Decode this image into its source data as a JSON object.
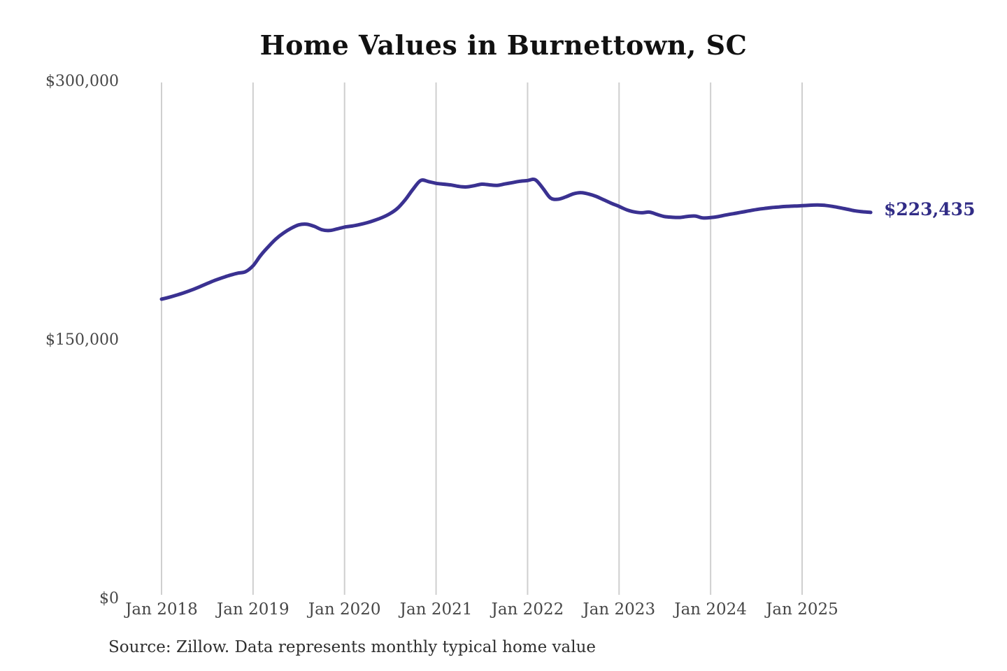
{
  "header": {
    "title": "Home Values in Burnettown, SC"
  },
  "footer": {
    "source_note": "Source: Zillow. Data represents monthly typical home value"
  },
  "chart_data": {
    "type": "line",
    "title": "Home Values in Burnettown, SC",
    "series_name": "Monthly typical home value",
    "xlabel": "",
    "ylabel": "",
    "ylim": [
      0,
      300000
    ],
    "grid": "vertical-only",
    "legend": "none",
    "line_color": "#3a3191",
    "gridline_color": "#cfcfcf",
    "tick_label_color": "#474747",
    "end_label": "$223,435",
    "end_value": 223435,
    "y_ticks": [
      {
        "label": "$0",
        "value": 0
      },
      {
        "label": "$150,000",
        "value": 150000
      },
      {
        "label": "$300,000",
        "value": 300000
      }
    ],
    "x_tick_labels": [
      "Jan 2018",
      "Jan 2019",
      "Jan 2020",
      "Jan 2021",
      "Jan 2022",
      "Jan 2023",
      "Jan 2024",
      "Jan 2025"
    ],
    "x": [
      "Jan 2018",
      "Feb 2018",
      "Mar 2018",
      "Apr 2018",
      "May 2018",
      "Jun 2018",
      "Jul 2018",
      "Aug 2018",
      "Sep 2018",
      "Oct 2018",
      "Nov 2018",
      "Dec 2018",
      "Jan 2019",
      "Feb 2019",
      "Mar 2019",
      "Apr 2019",
      "May 2019",
      "Jun 2019",
      "Jul 2019",
      "Aug 2019",
      "Sep 2019",
      "Oct 2019",
      "Nov 2019",
      "Dec 2019",
      "Jan 2020",
      "Feb 2020",
      "Mar 2020",
      "Apr 2020",
      "May 2020",
      "Jun 2020",
      "Jul 2020",
      "Aug 2020",
      "Sep 2020",
      "Oct 2020",
      "Nov 2020",
      "Dec 2020",
      "Jan 2021",
      "Feb 2021",
      "Mar 2021",
      "Apr 2021",
      "May 2021",
      "Jun 2021",
      "Jul 2021",
      "Aug 2021",
      "Sep 2021",
      "Oct 2021",
      "Nov 2021",
      "Dec 2021",
      "Jan 2022",
      "Feb 2022",
      "Mar 2022",
      "Apr 2022",
      "May 2022",
      "Jun 2022",
      "Jul 2022",
      "Aug 2022",
      "Sep 2022",
      "Oct 2022",
      "Nov 2022",
      "Dec 2022",
      "Jan 2023",
      "Feb 2023",
      "Mar 2023",
      "Apr 2023",
      "May 2023",
      "Jun 2023",
      "Jul 2023",
      "Aug 2023",
      "Sep 2023",
      "Oct 2023",
      "Nov 2023",
      "Dec 2023",
      "Jan 2024",
      "Feb 2024",
      "Mar 2024",
      "Apr 2024",
      "May 2024",
      "Jun 2024",
      "Jul 2024",
      "Aug 2024",
      "Sep 2024",
      "Oct 2024",
      "Nov 2024",
      "Dec 2024",
      "Jan 2025",
      "Feb 2025",
      "Mar 2025",
      "Apr 2025",
      "May 2025",
      "Jun 2025",
      "Jul 2025",
      "Aug 2025",
      "Sep 2025",
      "Oct 2025"
    ],
    "values": [
      173100,
      174200,
      175500,
      176900,
      178500,
      180300,
      182200,
      184000,
      185600,
      187000,
      188200,
      189000,
      192500,
      198500,
      203500,
      208000,
      211500,
      214200,
      216200,
      216600,
      215400,
      213400,
      212900,
      213800,
      214900,
      215500,
      216400,
      217500,
      218900,
      220600,
      222800,
      226000,
      231000,
      237000,
      242000,
      241300,
      240300,
      239800,
      239300,
      238500,
      238200,
      238900,
      239800,
      239400,
      239100,
      239900,
      240700,
      241500,
      241900,
      242400,
      237500,
      231800,
      231100,
      232400,
      234200,
      234900,
      234100,
      232700,
      230700,
      228700,
      226900,
      224900,
      223700,
      223200,
      223600,
      222200,
      221000,
      220600,
      220500,
      221100,
      221300,
      220200,
      220400,
      221000,
      221900,
      222700,
      223500,
      224300,
      225100,
      225700,
      226200,
      226600,
      226900,
      227100,
      227300,
      227600,
      227700,
      227500,
      226900,
      226100,
      225200,
      224300,
      223800,
      223435
    ]
  }
}
